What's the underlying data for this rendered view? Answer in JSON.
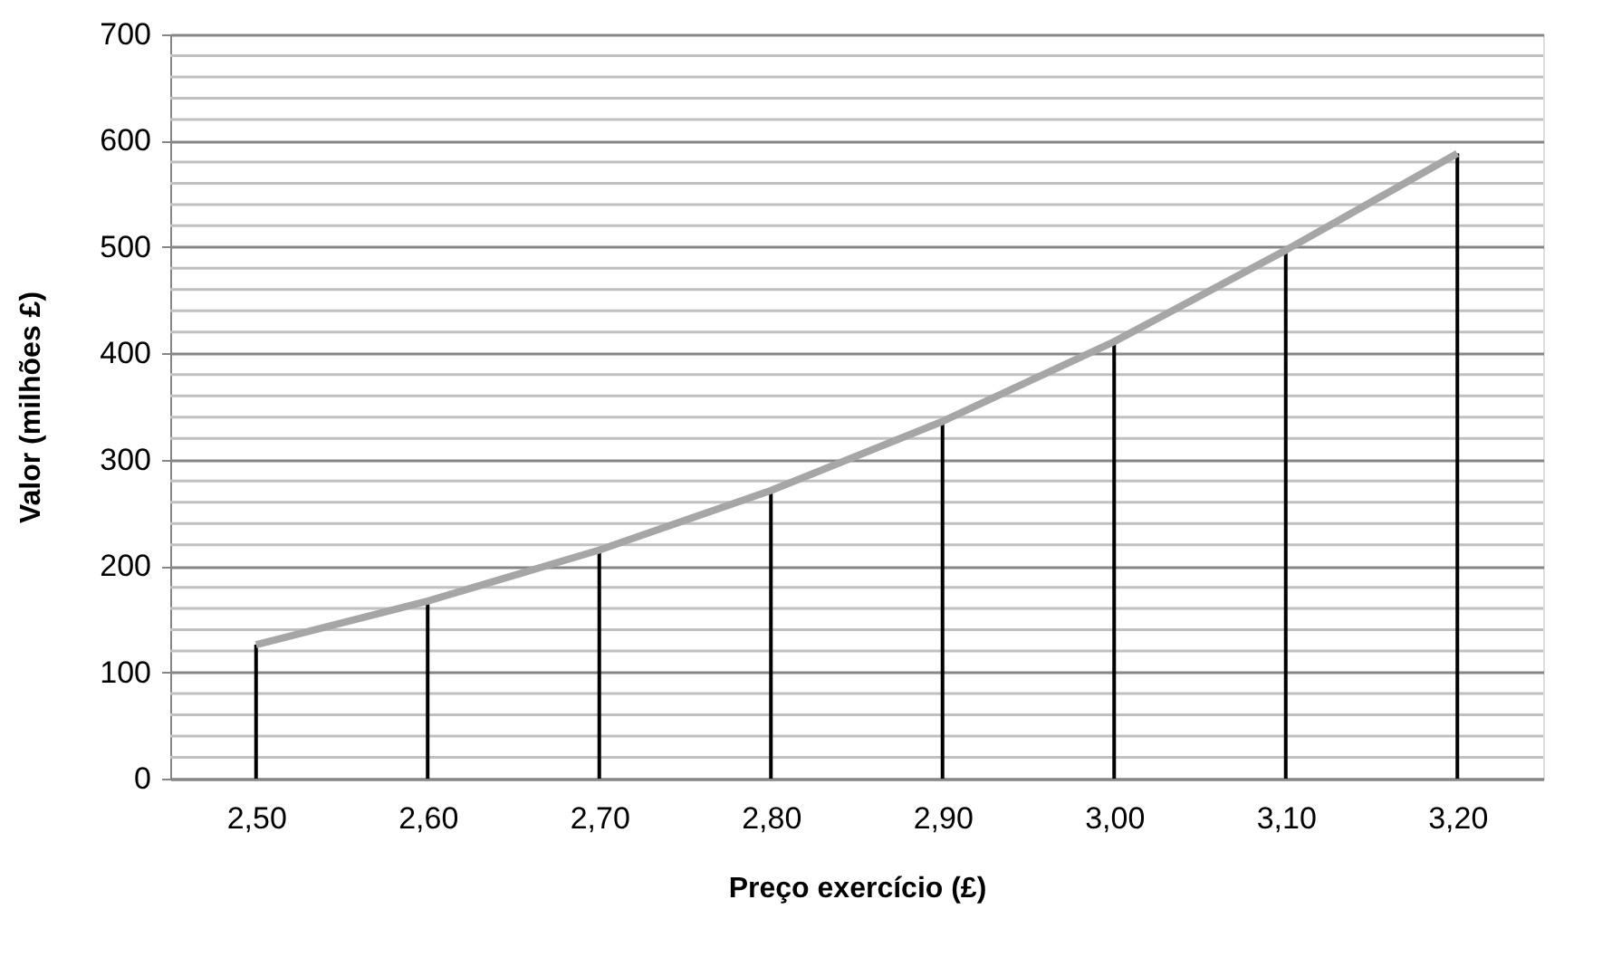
{
  "chart_data": {
    "type": "line",
    "xlabel": "Preço exercício (£)",
    "ylabel": "Valor (milhões £)",
    "categories": [
      "2,50",
      "2,60",
      "2,70",
      "2,80",
      "2,90",
      "3,00",
      "3,10",
      "3,20"
    ],
    "series": [
      {
        "color": "#a6a6a6",
        "values": [
          126,
          167,
          215,
          271,
          336,
          411,
          497,
          588
        ],
        "marker": "none",
        "line_style": "solid"
      },
      {
        "type": "bar",
        "color": "#000000",
        "values": [
          126,
          167,
          215,
          271,
          336,
          411,
          497,
          588
        ]
      }
    ],
    "ylim": [
      0,
      700
    ],
    "yticks": [
      0,
      {
        "value": 20,
        "label": null
      },
      {
        "value": 40,
        "label": null
      },
      {
        "value": 60,
        "label": null
      },
      {
        "value": 80,
        "label": null
      },
      100,
      {
        "value": 120,
        "label": null
      },
      {
        "value": 140,
        "label": null
      },
      {
        "value": 160,
        "label": null
      },
      {
        "value": 180,
        "label": null
      },
      200,
      {
        "value": 220,
        "label": null
      },
      {
        "value": 240,
        "label": null
      },
      {
        "value": 260,
        "label": null
      },
      {
        "value": 280,
        "label": null
      },
      300,
      {
        "value": 320,
        "label": null
      },
      {
        "value": 340,
        "label": null
      },
      {
        "value": 360,
        "label": null
      },
      {
        "value": 380,
        "label": null
      },
      400,
      {
        "value": 420,
        "label": null
      },
      {
        "value": 440,
        "label": null
      },
      {
        "value": 460,
        "label": null
      },
      {
        "value": 480,
        "label": null
      },
      500,
      {
        "value": 520,
        "label": null
      },
      {
        "value": 540,
        "label": null
      },
      {
        "value": 560,
        "label": null
      },
      {
        "value": 580,
        "label": null
      },
      600,
      {
        "value": 620,
        "label": null
      },
      {
        "value": 640,
        "label": null
      },
      {
        "value": 660,
        "label": null
      },
      {
        "value": 680,
        "label": null
      },
      700
    ],
    "grid": "y"
  }
}
